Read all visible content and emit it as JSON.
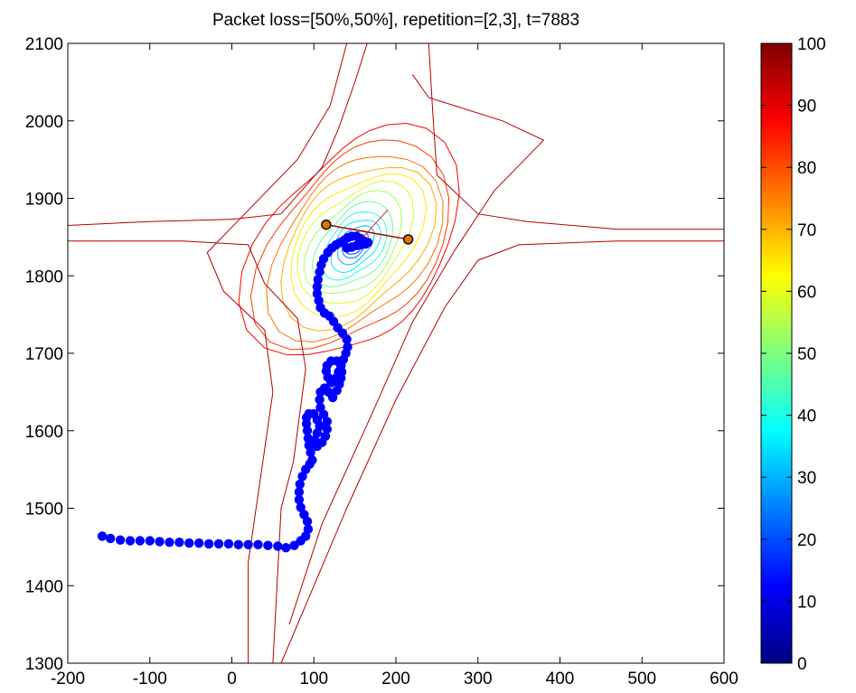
{
  "chart_data": {
    "type": "contour",
    "title": "Packet loss=[50%,50%], repetition=[2,3], t=7883",
    "xlabel": "",
    "ylabel": "",
    "xlim": [
      -200,
      600
    ],
    "ylim": [
      1300,
      2100
    ],
    "x_ticks": [
      -200,
      -100,
      0,
      100,
      200,
      300,
      400,
      500,
      600
    ],
    "y_ticks": [
      1300,
      1400,
      1500,
      1600,
      1700,
      1800,
      1900,
      2000,
      2100
    ],
    "grid": false,
    "colorbar": {
      "colormap": "jet",
      "range": [
        0,
        100
      ],
      "ticks": [
        0,
        10,
        20,
        30,
        40,
        50,
        60,
        70,
        80,
        90,
        100
      ]
    },
    "contour_peak": {
      "x": 150,
      "y": 1840
    },
    "trajectory": {
      "marker_color": "#0000ff",
      "points": [
        [
          -158,
          1464
        ],
        [
          -148,
          1461
        ],
        [
          -136,
          1459
        ],
        [
          -124,
          1458
        ],
        [
          -112,
          1458
        ],
        [
          -100,
          1458
        ],
        [
          -88,
          1457
        ],
        [
          -76,
          1456
        ],
        [
          -64,
          1456
        ],
        [
          -52,
          1455
        ],
        [
          -40,
          1455
        ],
        [
          -28,
          1454
        ],
        [
          -16,
          1454
        ],
        [
          -4,
          1454
        ],
        [
          8,
          1453
        ],
        [
          20,
          1453
        ],
        [
          32,
          1453
        ],
        [
          44,
          1452
        ],
        [
          56,
          1451
        ],
        [
          66,
          1449
        ],
        [
          76,
          1452
        ],
        [
          84,
          1458
        ],
        [
          90,
          1464
        ],
        [
          93,
          1473
        ],
        [
          92,
          1483
        ],
        [
          88,
          1492
        ],
        [
          84,
          1501
        ],
        [
          82,
          1511
        ],
        [
          82,
          1521
        ],
        [
          83,
          1531
        ],
        [
          86,
          1541
        ],
        [
          90,
          1550
        ],
        [
          95,
          1557
        ],
        [
          98,
          1562
        ],
        [
          96,
          1572
        ],
        [
          94,
          1581
        ],
        [
          93,
          1590
        ],
        [
          92,
          1600
        ],
        [
          91,
          1609
        ],
        [
          91,
          1617
        ],
        [
          94,
          1622
        ],
        [
          100,
          1622
        ],
        [
          104,
          1614
        ],
        [
          107,
          1606
        ],
        [
          104,
          1597
        ],
        [
          101,
          1588
        ],
        [
          104,
          1580
        ],
        [
          110,
          1585
        ],
        [
          114,
          1593
        ],
        [
          116,
          1602
        ],
        [
          116,
          1612
        ],
        [
          112,
          1621
        ],
        [
          108,
          1630
        ],
        [
          107,
          1640
        ],
        [
          108,
          1650
        ],
        [
          113,
          1655
        ],
        [
          118,
          1650
        ],
        [
          123,
          1643
        ],
        [
          128,
          1652
        ],
        [
          131,
          1660
        ],
        [
          133,
          1668
        ],
        [
          134,
          1676
        ],
        [
          133,
          1684
        ],
        [
          128,
          1690
        ],
        [
          121,
          1690
        ],
        [
          116,
          1684
        ],
        [
          115,
          1677
        ],
        [
          117,
          1669
        ],
        [
          121,
          1662
        ],
        [
          127,
          1668
        ],
        [
          130,
          1676
        ],
        [
          133,
          1684
        ],
        [
          136,
          1692
        ],
        [
          139,
          1700
        ],
        [
          141,
          1708
        ],
        [
          140,
          1718
        ],
        [
          135,
          1726
        ],
        [
          129,
          1733
        ],
        [
          124,
          1741
        ],
        [
          119,
          1748
        ],
        [
          113,
          1752
        ],
        [
          108,
          1759
        ],
        [
          106,
          1768
        ],
        [
          104,
          1777
        ],
        [
          104,
          1786
        ],
        [
          105,
          1795
        ],
        [
          107,
          1805
        ],
        [
          109,
          1814
        ],
        [
          112,
          1822
        ],
        [
          117,
          1830
        ],
        [
          122,
          1836
        ],
        [
          127,
          1840
        ],
        [
          132,
          1843
        ],
        [
          137,
          1846
        ],
        [
          141,
          1849
        ],
        [
          146,
          1851
        ],
        [
          152,
          1851
        ],
        [
          157,
          1848
        ],
        [
          161,
          1845
        ],
        [
          166,
          1843
        ],
        [
          163,
          1841
        ],
        [
          157,
          1840
        ],
        [
          152,
          1839
        ],
        [
          146,
          1837
        ],
        [
          140,
          1836
        ]
      ]
    },
    "anchors": [
      {
        "x": 115,
        "y": 1866
      },
      {
        "x": 215,
        "y": 1847
      }
    ]
  }
}
